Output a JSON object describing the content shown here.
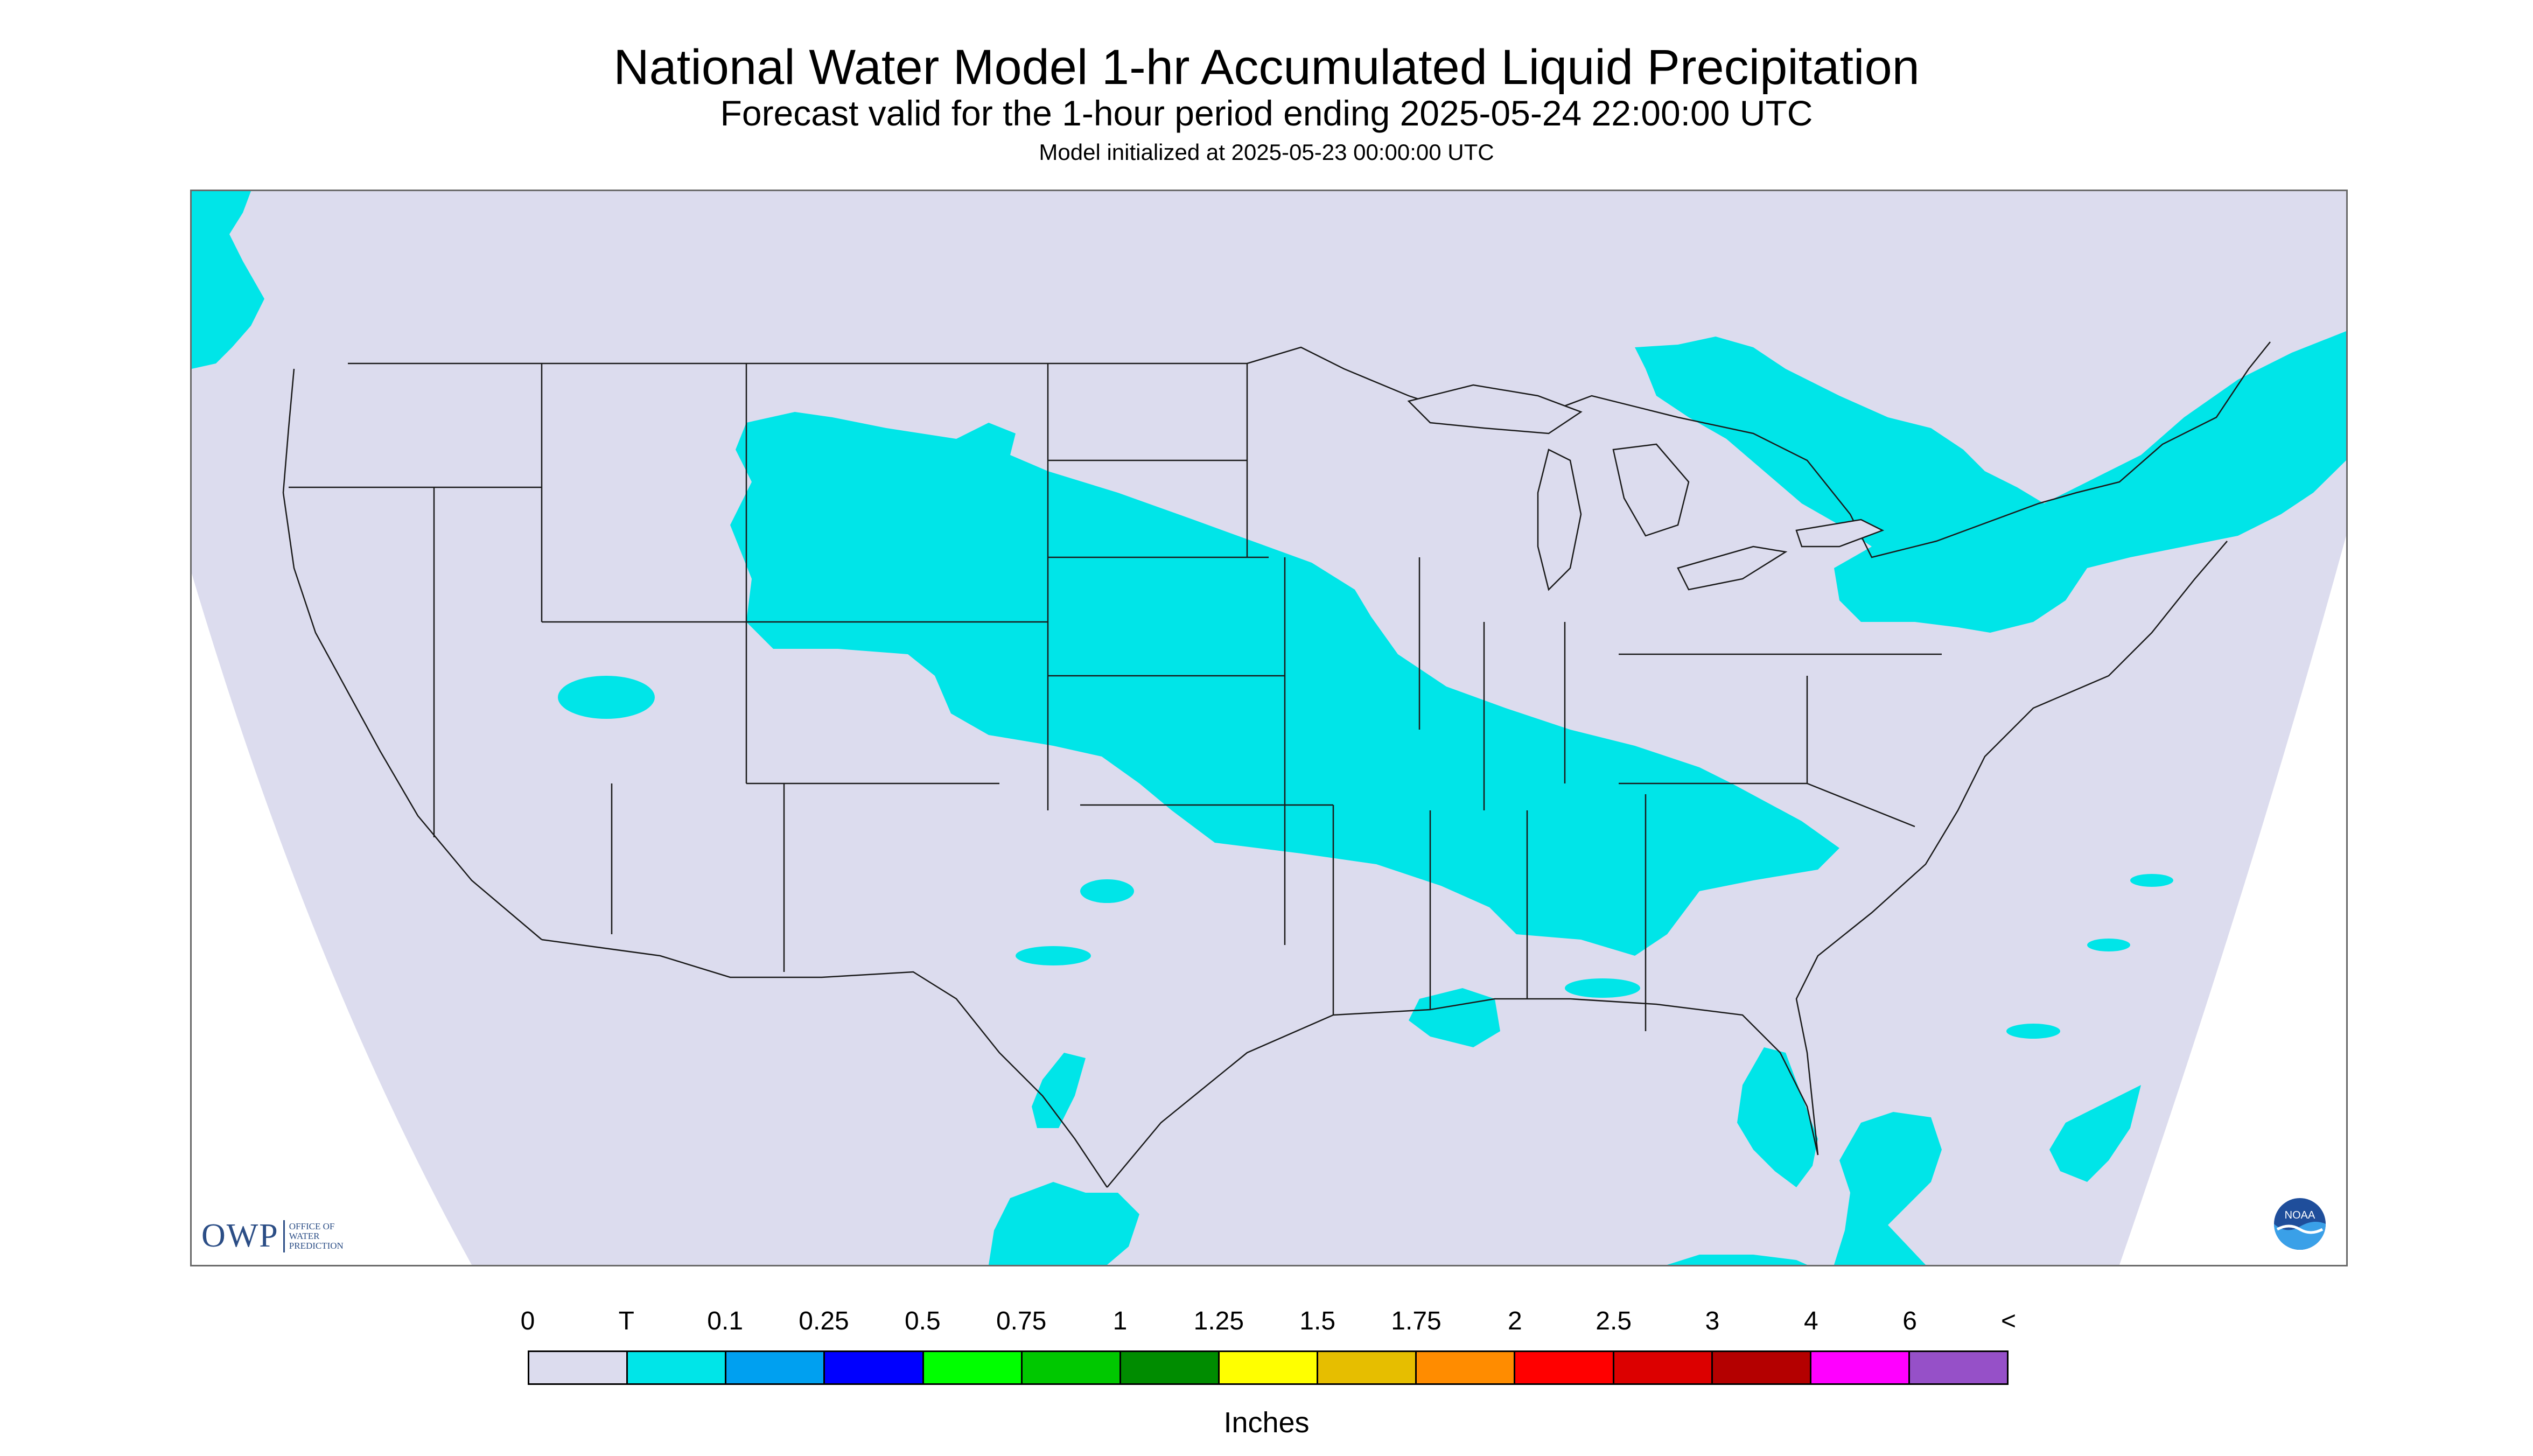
{
  "title": "National Water Model 1-hr Accumulated Liquid Precipitation",
  "subtitle": "Forecast valid for the 1-hour period ending 2025-05-24 22:00:00 UTC",
  "model_init": "Model initialized at 2025-05-23 00:00:00 UTC",
  "map": {
    "region": "CONUS",
    "background_color": "#dcdcee",
    "outside_color": "#ffffff",
    "boundary_color": "#1a1a1a",
    "precip_color": "#00e5e8",
    "precip_category": "T",
    "logos": {
      "owp": {
        "text": "OWP",
        "sub_lines": [
          "OFFICE OF",
          "WATER",
          "PREDICTION"
        ]
      },
      "noaa": {
        "text": "NOAA",
        "icon": "noaa-logo-icon"
      }
    }
  },
  "legend": {
    "units": "Inches",
    "labels": [
      "0",
      "T",
      "0.1",
      "0.25",
      "0.5",
      "0.75",
      "1",
      "1.25",
      "1.5",
      "1.75",
      "2",
      "2.5",
      "3",
      "4",
      "6",
      "<"
    ],
    "colors": [
      "#dcdcee",
      "#00e5e8",
      "#00a0f0",
      "#0000ff",
      "#00ff00",
      "#00c800",
      "#008c00",
      "#ffff00",
      "#e6be00",
      "#ff8c00",
      "#ff0000",
      "#dc0000",
      "#b40000",
      "#ff00ff",
      "#9650c8"
    ]
  }
}
